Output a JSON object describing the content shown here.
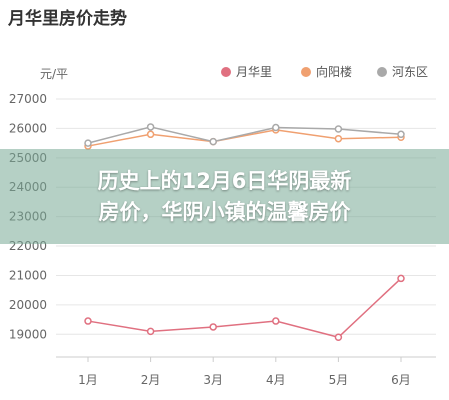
{
  "title": "月华里房价走势",
  "overlay": {
    "line1": "历史上的12月6日华阴最新",
    "line2": "房价，华阴小镇的温馨房价"
  },
  "chart_data": {
    "type": "line",
    "ylabel": "元/平",
    "categories": [
      "1月",
      "2月",
      "3月",
      "4月",
      "5月",
      "6月"
    ],
    "ylim": [
      18500,
      27000
    ],
    "yticks": [
      19000,
      20000,
      21000,
      22000,
      23000,
      24000,
      25000,
      26000,
      27000
    ],
    "grid": true,
    "legend_position": "top-right",
    "series": [
      {
        "name": "月华里",
        "color": "#e07080",
        "values": [
          19450,
          19100,
          19250,
          19450,
          18900,
          20900
        ]
      },
      {
        "name": "向阳楼",
        "color": "#f0a070",
        "values": [
          25400,
          25800,
          25550,
          25950,
          25650,
          25700
        ]
      },
      {
        "name": "河东区",
        "color": "#a9a9a9",
        "values": [
          25500,
          26050,
          25550,
          26030,
          25980,
          25800
        ]
      }
    ]
  }
}
